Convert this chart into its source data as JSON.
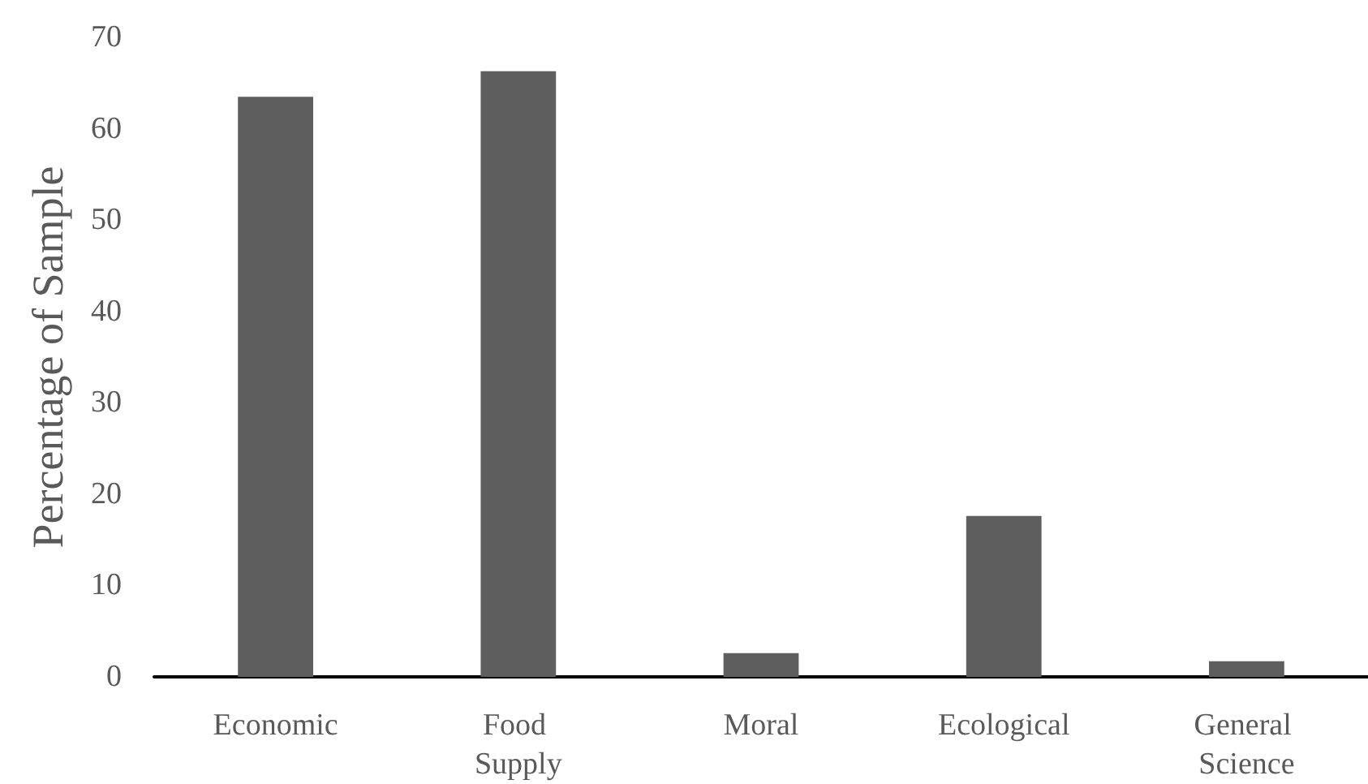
{
  "chart_data": {
    "type": "bar",
    "ylabel": "Percentage of Sample",
    "categories": [
      "Economic",
      "Food Supply",
      "Moral",
      "Ecological",
      "General Science"
    ],
    "values": [
      63.5,
      66.3,
      2.6,
      17.6,
      1.7
    ],
    "color": "#5e5e5e",
    "ylim": [
      0,
      70
    ],
    "yticks": [
      0,
      10,
      20,
      30,
      40,
      50,
      60,
      70
    ],
    "grid": false
  }
}
